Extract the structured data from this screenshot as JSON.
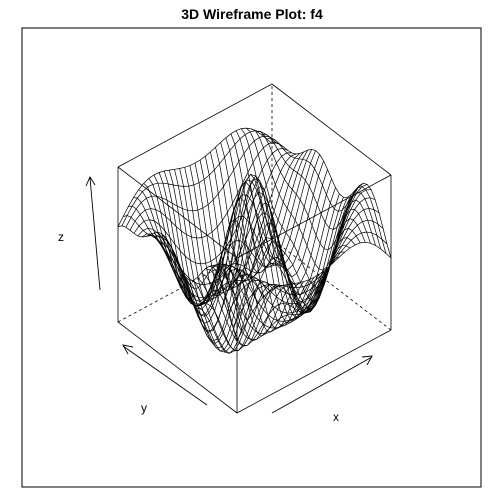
{
  "chart_data": {
    "type": "surface",
    "title": "3D Wireframe Plot: f4",
    "xlabel": "x",
    "ylabel": "y",
    "zlabel": "z",
    "style": "wireframe",
    "axes": "arrows",
    "box": true,
    "colors": {
      "line": "#000000",
      "background": "#ffffff"
    }
  }
}
